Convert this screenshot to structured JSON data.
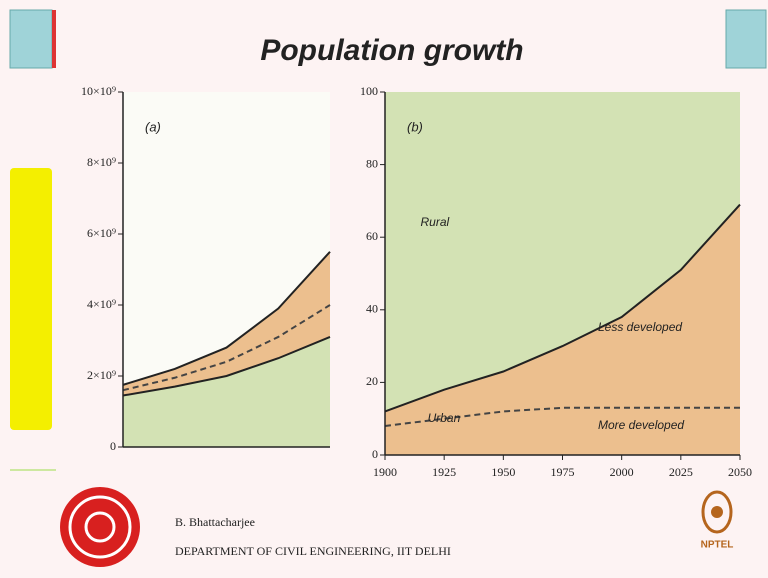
{
  "header": {
    "title": "Population growth"
  },
  "chart_data": [
    {
      "type": "line",
      "title": "(a)",
      "ylim": [
        0,
        10000000000
      ],
      "yticks": [
        0,
        {
          "value": 2000000000,
          "label": "2×10⁹"
        },
        {
          "value": 4000000000,
          "label": "4×10⁹"
        },
        {
          "value": 6000000000,
          "label": "6×10⁹"
        },
        {
          "value": 8000000000,
          "label": "8×10⁹"
        },
        {
          "value": 10000000000,
          "label": "10×10⁹"
        }
      ],
      "series": [
        {
          "color": "#222222",
          "fill": "#ecbf8e",
          "values": [
            1750000000,
            2200000000,
            2800000000,
            3900000000,
            5500000000
          ]
        },
        {
          "color": "#444444",
          "dashed": true,
          "values": [
            1600000000,
            1950000000,
            2400000000,
            3100000000,
            4000000000
          ]
        },
        {
          "color": "#222222",
          "fill": "#d3e2b4",
          "values": [
            1450000000,
            1700000000,
            2000000000,
            2500000000,
            3100000000
          ]
        }
      ]
    },
    {
      "type": "line",
      "title": "(b)",
      "background": "#d3e2b4",
      "x": [
        1900,
        1925,
        1950,
        1975,
        2000,
        2025,
        2050
      ],
      "xlim": [
        1900,
        2050
      ],
      "xticks": [
        1900,
        1925,
        1950,
        1975,
        2000,
        2025,
        2050
      ],
      "ylim": [
        0,
        100
      ],
      "yticks": [
        0,
        20,
        40,
        60,
        80,
        100
      ],
      "series": [
        {
          "color": "#222222",
          "fill": "#ecbf8e",
          "values": [
            12,
            18,
            23,
            30,
            38,
            51,
            69
          ]
        },
        {
          "color": "#444444",
          "dashed": true,
          "values": [
            8,
            10,
            12,
            13,
            13,
            13,
            13
          ]
        }
      ],
      "annotations": [
        "Rural",
        "Less developed",
        "Urban",
        "More developed"
      ]
    }
  ],
  "footer": {
    "author": "B. Bhattacharjee",
    "department": "DEPARTMENT OF CIVIL ENGINEERING, IIT DELHI",
    "logo_text": "NPTEL"
  }
}
